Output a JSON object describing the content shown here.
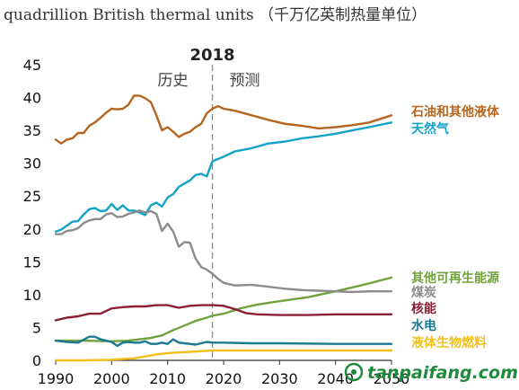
{
  "chart_data": {
    "type": "line",
    "title": "quadrillion British thermal units （千万亿英制热量单位）",
    "projection_year": "2018",
    "period_labels": {
      "history": "历史",
      "projection": "预测"
    },
    "xlim": [
      1990,
      2050
    ],
    "ylim": [
      0,
      45
    ],
    "x_ticks": [
      1990,
      2000,
      2010,
      2020,
      2030,
      2040,
      2050
    ],
    "y_ticks": [
      0,
      5,
      10,
      15,
      20,
      25,
      30,
      35,
      40,
      45
    ],
    "grid": false,
    "legend": "inline-right",
    "series": [
      {
        "name": "石油和其他液体",
        "color": "#b5651d",
        "points": [
          [
            1990,
            33.6
          ],
          [
            1991,
            33.0
          ],
          [
            1992,
            33.6
          ],
          [
            1993,
            33.8
          ],
          [
            1994,
            34.6
          ],
          [
            1995,
            34.6
          ],
          [
            1996,
            35.7
          ],
          [
            1997,
            36.2
          ],
          [
            1998,
            36.9
          ],
          [
            1999,
            37.7
          ],
          [
            2000,
            38.3
          ],
          [
            2001,
            38.2
          ],
          [
            2002,
            38.3
          ],
          [
            2003,
            38.9
          ],
          [
            2004,
            40.3
          ],
          [
            2005,
            40.3
          ],
          [
            2006,
            39.9
          ],
          [
            2007,
            39.3
          ],
          [
            2008,
            37.3
          ],
          [
            2009,
            35.0
          ],
          [
            2010,
            35.5
          ],
          [
            2011,
            34.8
          ],
          [
            2012,
            34.0
          ],
          [
            2013,
            34.5
          ],
          [
            2014,
            34.8
          ],
          [
            2015,
            35.5
          ],
          [
            2016,
            36.0
          ],
          [
            2017,
            37.6
          ],
          [
            2018,
            38.3
          ],
          [
            2019,
            38.7
          ],
          [
            2020,
            38.3
          ],
          [
            2022,
            38.0
          ],
          [
            2025,
            37.3
          ],
          [
            2028,
            36.6
          ],
          [
            2031,
            36.0
          ],
          [
            2034,
            35.7
          ],
          [
            2037,
            35.3
          ],
          [
            2040,
            35.5
          ],
          [
            2043,
            35.8
          ],
          [
            2046,
            36.2
          ],
          [
            2050,
            37.3
          ]
        ]
      },
      {
        "name": "天然气",
        "color": "#14a2c8",
        "points": [
          [
            1990,
            19.6
          ],
          [
            1991,
            19.9
          ],
          [
            1992,
            20.5
          ],
          [
            1993,
            21.1
          ],
          [
            1994,
            21.2
          ],
          [
            1995,
            22.2
          ],
          [
            1996,
            23.0
          ],
          [
            1997,
            23.2
          ],
          [
            1998,
            22.7
          ],
          [
            1999,
            22.8
          ],
          [
            2000,
            23.8
          ],
          [
            2001,
            22.9
          ],
          [
            2002,
            23.6
          ],
          [
            2003,
            22.8
          ],
          [
            2004,
            22.8
          ],
          [
            2005,
            22.5
          ],
          [
            2006,
            22.1
          ],
          [
            2007,
            23.6
          ],
          [
            2008,
            24.0
          ],
          [
            2009,
            23.4
          ],
          [
            2010,
            24.8
          ],
          [
            2011,
            25.3
          ],
          [
            2012,
            26.4
          ],
          [
            2013,
            26.9
          ],
          [
            2014,
            27.4
          ],
          [
            2015,
            28.2
          ],
          [
            2016,
            28.4
          ],
          [
            2017,
            28.0
          ],
          [
            2018,
            30.3
          ],
          [
            2020,
            31.0
          ],
          [
            2022,
            31.8
          ],
          [
            2025,
            32.3
          ],
          [
            2028,
            33.0
          ],
          [
            2031,
            33.3
          ],
          [
            2034,
            33.8
          ],
          [
            2037,
            34.1
          ],
          [
            2040,
            34.5
          ],
          [
            2043,
            35.0
          ],
          [
            2046,
            35.5
          ],
          [
            2050,
            36.2
          ]
        ]
      },
      {
        "name": "其他可再生能源",
        "color": "#71a23d",
        "points": [
          [
            1990,
            3.0
          ],
          [
            1995,
            3.0
          ],
          [
            2000,
            2.9
          ],
          [
            2003,
            3.0
          ],
          [
            2005,
            3.2
          ],
          [
            2007,
            3.4
          ],
          [
            2009,
            3.8
          ],
          [
            2011,
            4.6
          ],
          [
            2013,
            5.3
          ],
          [
            2015,
            6.0
          ],
          [
            2017,
            6.5
          ],
          [
            2018,
            6.8
          ],
          [
            2020,
            7.1
          ],
          [
            2023,
            7.9
          ],
          [
            2026,
            8.5
          ],
          [
            2030,
            9.0
          ],
          [
            2035,
            9.6
          ],
          [
            2040,
            10.5
          ],
          [
            2045,
            11.5
          ],
          [
            2050,
            12.6
          ]
        ]
      },
      {
        "name": "煤炭",
        "color": "#8c8c8c",
        "points": [
          [
            1990,
            19.2
          ],
          [
            1991,
            19.2
          ],
          [
            1992,
            19.7
          ],
          [
            1993,
            19.8
          ],
          [
            1994,
            20.1
          ],
          [
            1995,
            20.9
          ],
          [
            1996,
            21.3
          ],
          [
            1997,
            21.5
          ],
          [
            1998,
            21.5
          ],
          [
            1999,
            22.2
          ],
          [
            2000,
            22.4
          ],
          [
            2001,
            21.8
          ],
          [
            2002,
            21.9
          ],
          [
            2003,
            22.3
          ],
          [
            2004,
            22.5
          ],
          [
            2005,
            22.8
          ],
          [
            2006,
            22.5
          ],
          [
            2007,
            22.7
          ],
          [
            2008,
            22.3
          ],
          [
            2009,
            19.7
          ],
          [
            2010,
            20.8
          ],
          [
            2011,
            19.6
          ],
          [
            2012,
            17.3
          ],
          [
            2013,
            18.0
          ],
          [
            2014,
            17.9
          ],
          [
            2015,
            15.5
          ],
          [
            2016,
            14.2
          ],
          [
            2017,
            13.8
          ],
          [
            2018,
            13.2
          ],
          [
            2019,
            12.4
          ],
          [
            2020,
            11.8
          ],
          [
            2022,
            11.4
          ],
          [
            2025,
            11.5
          ],
          [
            2028,
            11.2
          ],
          [
            2031,
            10.9
          ],
          [
            2034,
            10.7
          ],
          [
            2037,
            10.6
          ],
          [
            2040,
            10.5
          ],
          [
            2043,
            10.4
          ],
          [
            2046,
            10.5
          ],
          [
            2050,
            10.5
          ]
        ]
      },
      {
        "name": "核能",
        "color": "#8b2034",
        "points": [
          [
            1990,
            6.1
          ],
          [
            1992,
            6.5
          ],
          [
            1994,
            6.7
          ],
          [
            1996,
            7.1
          ],
          [
            1998,
            7.1
          ],
          [
            2000,
            7.9
          ],
          [
            2002,
            8.1
          ],
          [
            2004,
            8.2
          ],
          [
            2006,
            8.2
          ],
          [
            2008,
            8.4
          ],
          [
            2010,
            8.4
          ],
          [
            2012,
            8.0
          ],
          [
            2014,
            8.3
          ],
          [
            2016,
            8.4
          ],
          [
            2018,
            8.4
          ],
          [
            2020,
            8.3
          ],
          [
            2022,
            7.8
          ],
          [
            2024,
            7.2
          ],
          [
            2026,
            7.0
          ],
          [
            2030,
            6.9
          ],
          [
            2035,
            6.9
          ],
          [
            2040,
            7.0
          ],
          [
            2045,
            7.0
          ],
          [
            2050,
            7.0
          ]
        ]
      },
      {
        "name": "水电",
        "color": "#1b7a91",
        "points": [
          [
            1990,
            3.0
          ],
          [
            1992,
            2.8
          ],
          [
            1994,
            2.7
          ],
          [
            1996,
            3.6
          ],
          [
            1997,
            3.6
          ],
          [
            1998,
            3.2
          ],
          [
            2000,
            2.8
          ],
          [
            2001,
            2.2
          ],
          [
            2002,
            2.7
          ],
          [
            2003,
            2.8
          ],
          [
            2004,
            2.7
          ],
          [
            2005,
            2.7
          ],
          [
            2006,
            2.9
          ],
          [
            2007,
            2.5
          ],
          [
            2008,
            2.5
          ],
          [
            2009,
            2.7
          ],
          [
            2010,
            2.5
          ],
          [
            2011,
            3.2
          ],
          [
            2012,
            2.7
          ],
          [
            2013,
            2.6
          ],
          [
            2014,
            2.5
          ],
          [
            2015,
            2.4
          ],
          [
            2016,
            2.6
          ],
          [
            2017,
            2.8
          ],
          [
            2018,
            2.7
          ],
          [
            2020,
            2.7
          ],
          [
            2025,
            2.6
          ],
          [
            2030,
            2.6
          ],
          [
            2040,
            2.5
          ],
          [
            2050,
            2.5
          ]
        ]
      },
      {
        "name": "液体生物燃料",
        "color": "#f2c01d",
        "points": [
          [
            1990,
            0.0
          ],
          [
            1995,
            0.0
          ],
          [
            2000,
            0.1
          ],
          [
            2002,
            0.2
          ],
          [
            2004,
            0.3
          ],
          [
            2006,
            0.6
          ],
          [
            2008,
            0.9
          ],
          [
            2010,
            1.1
          ],
          [
            2012,
            1.2
          ],
          [
            2014,
            1.3
          ],
          [
            2016,
            1.4
          ],
          [
            2018,
            1.5
          ],
          [
            2020,
            1.5
          ],
          [
            2025,
            1.5
          ],
          [
            2030,
            1.5
          ],
          [
            2040,
            1.5
          ],
          [
            2050,
            1.5
          ]
        ]
      }
    ],
    "watermark": "tanpaifang.com"
  }
}
